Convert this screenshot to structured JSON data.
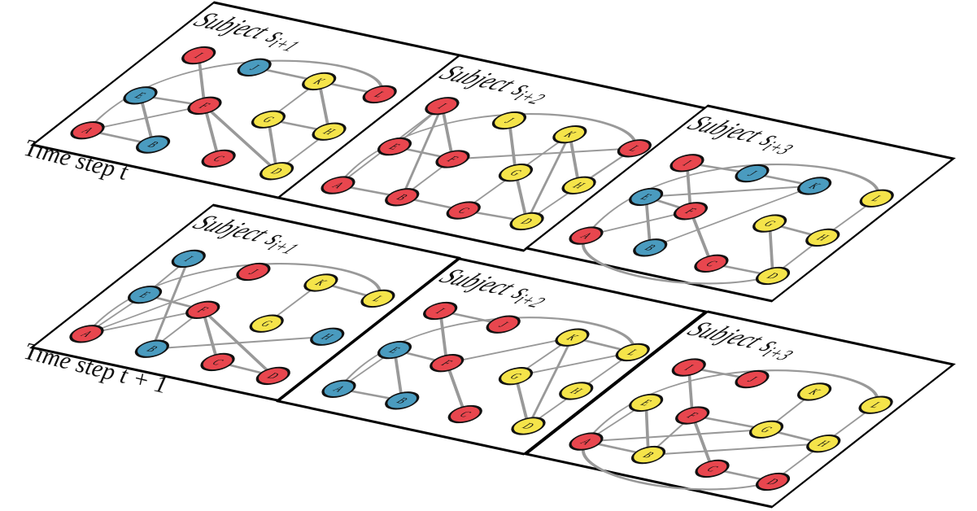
{
  "rows": [
    {
      "label": "Time step t",
      "panels": [
        {
          "title": "Subject",
          "symbol": "s",
          "subscript": "i+1",
          "nodes": [
            {
              "label": "A",
              "color": "#e8464e"
            },
            {
              "label": "B",
              "color": "#4a9bbf"
            },
            {
              "label": "C",
              "color": "#e8464e"
            },
            {
              "label": "D",
              "color": "#f5e44a"
            },
            {
              "label": "E",
              "color": "#4a9bbf"
            },
            {
              "label": "F",
              "color": "#e8464e"
            },
            {
              "label": "G",
              "color": "#f5e44a"
            },
            {
              "label": "H",
              "color": "#f5e44a"
            },
            {
              "label": "I",
              "color": "#e8464e"
            },
            {
              "label": "J",
              "color": "#4a9bbf"
            },
            {
              "label": "K",
              "color": "#f5e44a"
            },
            {
              "label": "L",
              "color": "#e8464e"
            }
          ]
        },
        {
          "title": "Subject",
          "symbol": "s",
          "subscript": "i+2",
          "nodes": [
            {
              "label": "A",
              "color": "#e8464e"
            },
            {
              "label": "B",
              "color": "#e8464e"
            },
            {
              "label": "C",
              "color": "#e8464e"
            },
            {
              "label": "D",
              "color": "#f5e44a"
            },
            {
              "label": "E",
              "color": "#e8464e"
            },
            {
              "label": "F",
              "color": "#e8464e"
            },
            {
              "label": "G",
              "color": "#f5e44a"
            },
            {
              "label": "H",
              "color": "#f5e44a"
            },
            {
              "label": "I",
              "color": "#e8464e"
            },
            {
              "label": "J",
              "color": "#f5e44a"
            },
            {
              "label": "K",
              "color": "#f5e44a"
            },
            {
              "label": "L",
              "color": "#e8464e"
            }
          ]
        },
        {
          "title": "Subject",
          "symbol": "s",
          "subscript": "i+3",
          "nodes": [
            {
              "label": "A",
              "color": "#e8464e"
            },
            {
              "label": "B",
              "color": "#4a9bbf"
            },
            {
              "label": "C",
              "color": "#e8464e"
            },
            {
              "label": "D",
              "color": "#f5e44a"
            },
            {
              "label": "E",
              "color": "#4a9bbf"
            },
            {
              "label": "F",
              "color": "#e8464e"
            },
            {
              "label": "G",
              "color": "#f5e44a"
            },
            {
              "label": "H",
              "color": "#f5e44a"
            },
            {
              "label": "I",
              "color": "#e8464e"
            },
            {
              "label": "J",
              "color": "#4a9bbf"
            },
            {
              "label": "K",
              "color": "#4a9bbf"
            },
            {
              "label": "L",
              "color": "#f5e44a"
            }
          ]
        }
      ]
    },
    {
      "label": "Time step t + 1",
      "panels": [
        {
          "title": "Subject",
          "symbol": "s",
          "subscript": "i+1",
          "nodes": [
            {
              "label": "A",
              "color": "#e8464e"
            },
            {
              "label": "B",
              "color": "#4a9bbf"
            },
            {
              "label": "C",
              "color": "#e8464e"
            },
            {
              "label": "D",
              "color": "#e8464e"
            },
            {
              "label": "E",
              "color": "#4a9bbf"
            },
            {
              "label": "F",
              "color": "#e8464e"
            },
            {
              "label": "G",
              "color": "#f5e44a"
            },
            {
              "label": "H",
              "color": "#4a9bbf"
            },
            {
              "label": "I",
              "color": "#4a9bbf"
            },
            {
              "label": "J",
              "color": "#e8464e"
            },
            {
              "label": "K",
              "color": "#f5e44a"
            },
            {
              "label": "L",
              "color": "#f5e44a"
            }
          ]
        },
        {
          "title": "Subject",
          "symbol": "s",
          "subscript": "i+2",
          "nodes": [
            {
              "label": "A",
              "color": "#4a9bbf"
            },
            {
              "label": "B",
              "color": "#4a9bbf"
            },
            {
              "label": "C",
              "color": "#e8464e"
            },
            {
              "label": "D",
              "color": "#f5e44a"
            },
            {
              "label": "E",
              "color": "#4a9bbf"
            },
            {
              "label": "F",
              "color": "#e8464e"
            },
            {
              "label": "G",
              "color": "#f5e44a"
            },
            {
              "label": "H",
              "color": "#f5e44a"
            },
            {
              "label": "I",
              "color": "#e8464e"
            },
            {
              "label": "J",
              "color": "#e8464e"
            },
            {
              "label": "K",
              "color": "#f5e44a"
            },
            {
              "label": "L",
              "color": "#f5e44a"
            }
          ]
        },
        {
          "title": "Subject",
          "symbol": "s",
          "subscript": "i+3",
          "nodes": [
            {
              "label": "A",
              "color": "#e8464e"
            },
            {
              "label": "B",
              "color": "#f5e44a"
            },
            {
              "label": "C",
              "color": "#e8464e"
            },
            {
              "label": "D",
              "color": "#e8464e"
            },
            {
              "label": "E",
              "color": "#f5e44a"
            },
            {
              "label": "F",
              "color": "#e8464e"
            },
            {
              "label": "G",
              "color": "#f5e44a"
            },
            {
              "label": "H",
              "color": "#f5e44a"
            },
            {
              "label": "I",
              "color": "#e8464e"
            },
            {
              "label": "J",
              "color": "#e8464e"
            },
            {
              "label": "K",
              "color": "#f5e44a"
            },
            {
              "label": "L",
              "color": "#f5e44a"
            }
          ]
        }
      ]
    }
  ]
}
